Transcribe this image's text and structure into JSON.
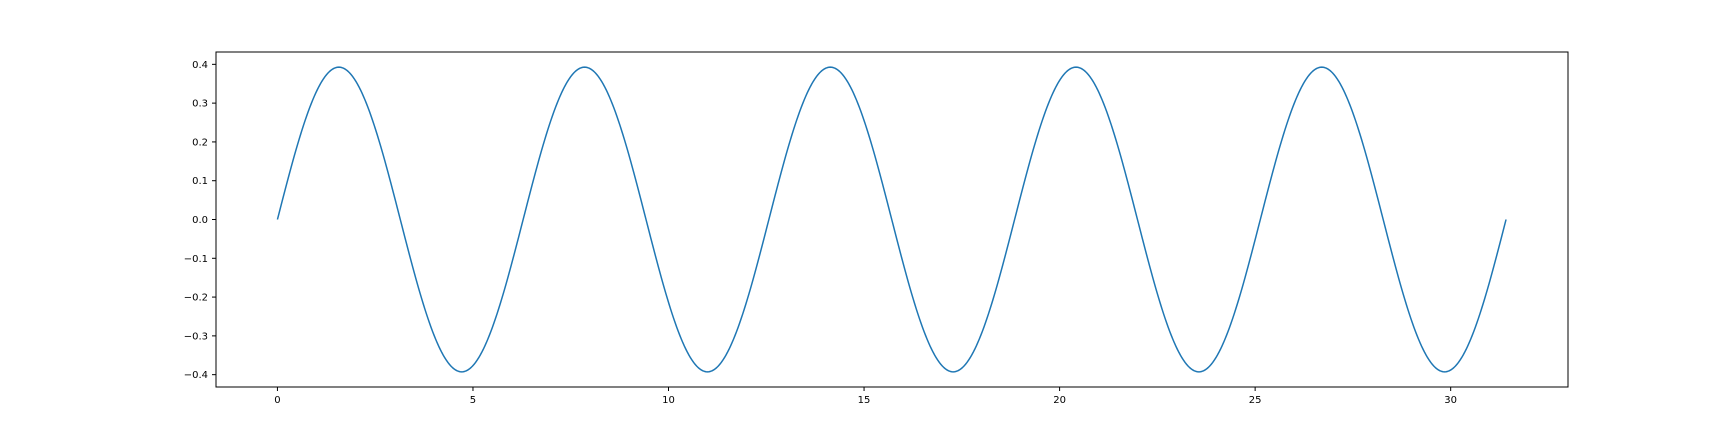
{
  "chart_data": {
    "type": "line",
    "title": "",
    "xlabel": "",
    "ylabel": "",
    "xlim": [
      -1.5708,
      33.0
    ],
    "ylim": [
      -0.4318,
      0.4318
    ],
    "xticks": [
      0,
      5,
      10,
      15,
      20,
      25,
      30
    ],
    "xtick_labels": [
      "0",
      "5",
      "10",
      "15",
      "20",
      "25",
      "30"
    ],
    "yticks": [
      0.4,
      0.3,
      0.2,
      0.1,
      0.0,
      -0.1,
      -0.2,
      -0.3,
      -0.4
    ],
    "ytick_labels": [
      "0.4",
      "0.3",
      "0.2",
      "0.1",
      "0.0",
      "−0.1",
      "−0.2",
      "−0.3",
      "−0.4"
    ],
    "grid": false,
    "legend": "none",
    "series": [
      {
        "color": "#1f77b4",
        "function": "0.3927 * sin(x)",
        "x_range": [
          0,
          31.4159
        ],
        "amplitude": 0.3927,
        "peaks": [
          [
            1.571,
            0.3927
          ],
          [
            7.854,
            0.3927
          ],
          [
            14.137,
            0.3927
          ],
          [
            20.42,
            0.3927
          ],
          [
            26.704,
            0.3927
          ]
        ],
        "troughs": [
          [
            4.712,
            -0.3927
          ],
          [
            10.996,
            -0.3927
          ],
          [
            17.279,
            -0.3927
          ],
          [
            23.562,
            -0.3927
          ],
          [
            29.845,
            -0.3927
          ]
        ]
      }
    ]
  }
}
